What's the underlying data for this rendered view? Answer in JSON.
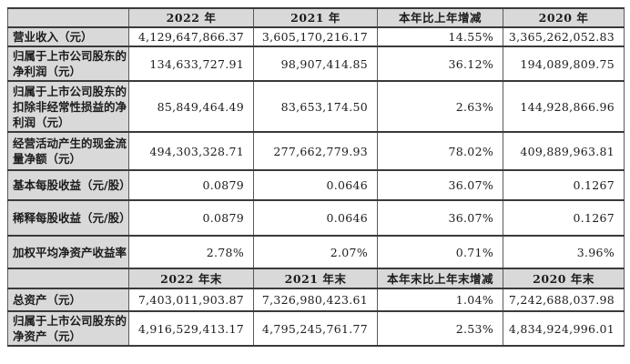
{
  "colors": {
    "header_fill": "#d9d9d9",
    "label_fill": "#d9d9d9",
    "cell_fill": "#ffffff",
    "border_horizontal": "#3a3a3a",
    "border_vertical": "#5a5a5a",
    "text": "#1c1c1c"
  },
  "table": {
    "annual": {
      "headers": [
        "",
        "2022 年",
        "2021 年",
        "本年比上年增减",
        "2020 年"
      ],
      "rows": [
        {
          "label": "营业收入（元）",
          "values": [
            "4,129,647,866.37",
            "3,605,170,216.17",
            "14.55%",
            "3,365,262,052.83"
          ]
        },
        {
          "label": "归属于上市公司股东的净利润（元）",
          "values": [
            "134,633,727.91",
            "98,907,414.85",
            "36.12%",
            "194,089,809.75"
          ]
        },
        {
          "label": "归属于上市公司股东的扣除非经常性损益的净利润（元）",
          "values": [
            "85,849,464.49",
            "83,653,174.50",
            "2.63%",
            "144,928,866.96"
          ]
        },
        {
          "label": "经营活动产生的现金流量净额（元）",
          "values": [
            "494,303,328.71",
            "277,662,779.93",
            "78.02%",
            "409,889,963.81"
          ]
        },
        {
          "label": "基本每股收益（元/股）",
          "values": [
            "0.0879",
            "0.0646",
            "36.07%",
            "0.1267"
          ]
        },
        {
          "label": "稀释每股收益（元/股）",
          "values": [
            "0.0879",
            "0.0646",
            "36.07%",
            "0.1267"
          ]
        },
        {
          "label": "加权平均净资产收益率",
          "values": [
            "2.78%",
            "2.07%",
            "0.71%",
            "3.96%"
          ]
        }
      ]
    },
    "year_end": {
      "headers": [
        "",
        "2022 年末",
        "2021 年末",
        "本年末比上年末增减",
        "2020 年末"
      ],
      "rows": [
        {
          "label": "总资产（元）",
          "values": [
            "7,403,011,903.87",
            "7,326,980,423.61",
            "1.04%",
            "7,242,688,037.98"
          ]
        },
        {
          "label": "归属于上市公司股东的净资产（元）",
          "values": [
            "4,916,529,413.17",
            "4,795,245,761.77",
            "2.53%",
            "4,834,924,996.01"
          ]
        }
      ]
    }
  }
}
